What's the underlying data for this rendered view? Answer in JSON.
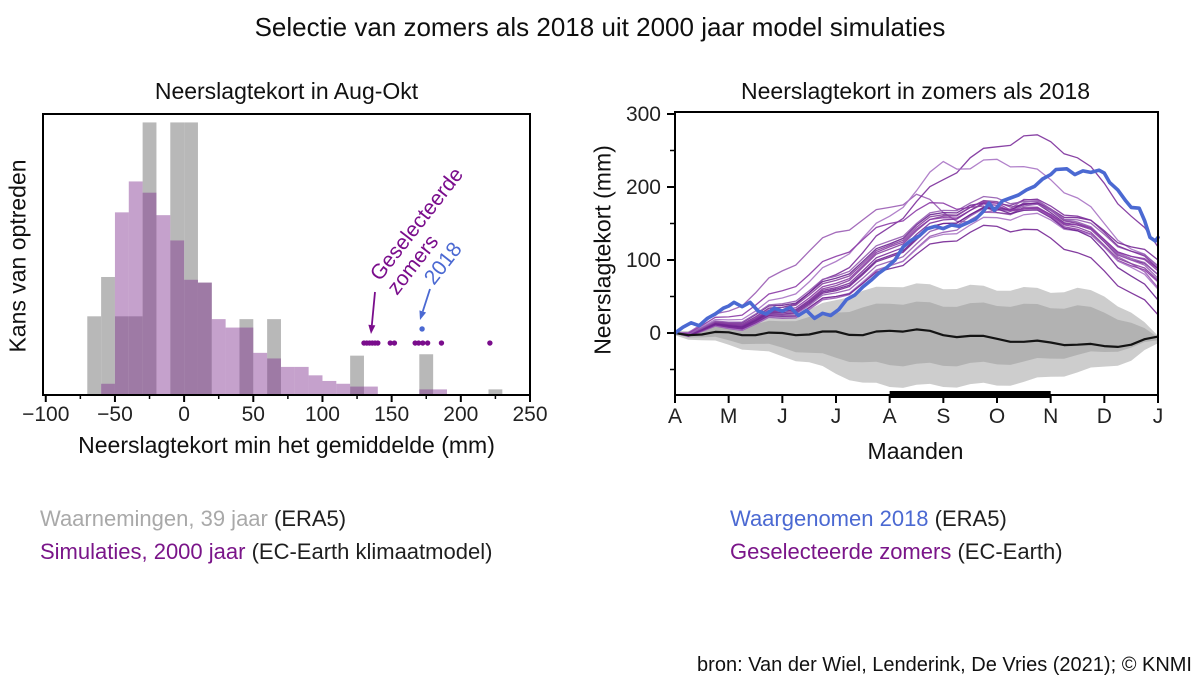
{
  "title": "Selectie van zomers als 2018 uit 2000 jaar model simulaties",
  "source": "bron: Van der Wiel, Lenderink, De Vries (2021); © KNMI",
  "colors": {
    "obs_gray": "#b8b8b8",
    "sim_purple": "rgba(127,47,142,0.45)",
    "dot_purple": "#7a0d8c",
    "blue": "#4b69d2",
    "band_outer": "#cdcdcd",
    "band_inner": "#b2b2b2",
    "black_line": "#141414",
    "axis": "#000000",
    "tick_text": "#222222",
    "purple_palette": [
      "#9a5cb4",
      "#7c2f9b",
      "#a873c4",
      "#86429f",
      "#6d2391",
      "#945bb0",
      "#8b3aa6",
      "#752795"
    ],
    "legend_gray": "#a9a9a9",
    "legend_purple": "#7a1589",
    "legend_blue": "#4b69d2"
  },
  "legend_left": [
    {
      "label": "Waarnemingen, 39 jaar",
      "suffix": " (ERA5)"
    },
    {
      "label": "Simulaties, 2000 jaar",
      "suffix": " (EC-Earth klimaatmodel)"
    }
  ],
  "legend_right": [
    {
      "label": "Waargenomen 2018",
      "suffix": " (ERA5)"
    },
    {
      "label": "Geselecteerde zomers",
      "suffix": " (EC-Earth)"
    }
  ],
  "chart_data": [
    {
      "type": "bar",
      "subtype": "overlaid-histograms-with-dot-rug",
      "title": "Neerslagtekort in Aug-Okt",
      "xlabel": "Neerslagtekort min het gemiddelde (mm)",
      "ylabel": "Kans van optreden",
      "xlim": [
        -102,
        250
      ],
      "x_ticks": [
        -100,
        -50,
        0,
        50,
        100,
        150,
        200,
        250
      ],
      "x_minor_ticks": [
        -75,
        -25,
        25,
        75,
        125,
        175,
        225
      ],
      "bin_width": 10,
      "obs_bins": [
        [
          -70,
          0.28
        ],
        [
          -60,
          0.42
        ],
        [
          -50,
          0.28
        ],
        [
          -40,
          0.28
        ],
        [
          -30,
          0.97
        ],
        [
          -10,
          0.97
        ],
        [
          0,
          0.97
        ],
        [
          10,
          0.4
        ],
        [
          40,
          0.27
        ],
        [
          60,
          0.27
        ],
        [
          120,
          0.14
        ],
        [
          170,
          0.145
        ],
        [
          220,
          0.02
        ]
      ],
      "sim_bins": [
        [
          -60,
          0.04
        ],
        [
          -50,
          0.65
        ],
        [
          -40,
          0.76
        ],
        [
          -30,
          0.72
        ],
        [
          -20,
          0.64
        ],
        [
          -10,
          0.55
        ],
        [
          0,
          0.41
        ],
        [
          10,
          0.4
        ],
        [
          20,
          0.27
        ],
        [
          30,
          0.24
        ],
        [
          40,
          0.24
        ],
        [
          50,
          0.15
        ],
        [
          60,
          0.13
        ],
        [
          70,
          0.1
        ],
        [
          80,
          0.1
        ],
        [
          90,
          0.07
        ],
        [
          100,
          0.05
        ],
        [
          110,
          0.04
        ],
        [
          120,
          0.03
        ],
        [
          130,
          0.03
        ],
        [
          170,
          0.02
        ],
        [
          180,
          0.02
        ]
      ],
      "selected_summer_dots_x": [
        130,
        132,
        134,
        136,
        138,
        140,
        149,
        152,
        167,
        169.5,
        172.5,
        176,
        186,
        221
      ],
      "dots_y_frac": 0.185,
      "dot_2018": {
        "x": 172,
        "y_frac": 0.235
      },
      "annotations": {
        "selected_lines": [
          "Geselecteerde",
          "zomers"
        ],
        "year_label": "2018"
      }
    },
    {
      "type": "line",
      "title": "Neerslagtekort in zomers als 2018",
      "xlabel": "Maanden",
      "ylabel": "Neerslagtekort (mm)",
      "months": [
        "A",
        "M",
        "J",
        "J",
        "A",
        "S",
        "O",
        "N",
        "D",
        "J"
      ],
      "ylim": [
        -85,
        305
      ],
      "y_ticks": [
        0,
        100,
        200,
        300
      ],
      "y_minor_ticks": [
        -50,
        50,
        150,
        250
      ],
      "selection_period": {
        "start_month_index": 4,
        "end_month_index": 7
      },
      "x_step_months": 0.5,
      "band_outer": {
        "upper": [
          3,
          8,
          12,
          18,
          24,
          32,
          45,
          58,
          63,
          68,
          60,
          66,
          58,
          63,
          55,
          62,
          50,
          28,
          -4
        ],
        "lower": [
          -3,
          -10,
          -16,
          -24,
          -32,
          -40,
          -56,
          -68,
          -74,
          -71,
          -74,
          -70,
          -72,
          -67,
          -60,
          -54,
          -46,
          -38,
          -14
        ]
      },
      "band_inner": {
        "upper": [
          1,
          5,
          8,
          12,
          16,
          22,
          28,
          35,
          40,
          43,
          36,
          41,
          37,
          40,
          34,
          38,
          28,
          14,
          -6
        ],
        "lower": [
          -1,
          -6,
          -10,
          -15,
          -20,
          -27,
          -34,
          -40,
          -44,
          -42,
          -45,
          -41,
          -43,
          -39,
          -35,
          -30,
          -26,
          -20,
          -10
        ]
      },
      "black_line": [
        0,
        -2,
        1,
        -3,
        0,
        -2,
        2,
        -3,
        3,
        5,
        -3,
        -4,
        -8,
        -12,
        -13,
        -16,
        -18,
        -16,
        -5
      ],
      "blue_line": [
        [
          0,
          0
        ],
        [
          0.15,
          8
        ],
        [
          0.3,
          14
        ],
        [
          0.45,
          10
        ],
        [
          0.6,
          20
        ],
        [
          0.75,
          26
        ],
        [
          0.9,
          34
        ],
        [
          1.0,
          37
        ],
        [
          1.1,
          42
        ],
        [
          1.25,
          36
        ],
        [
          1.4,
          42
        ],
        [
          1.55,
          30
        ],
        [
          1.7,
          26
        ],
        [
          1.85,
          34
        ],
        [
          2.0,
          30
        ],
        [
          2.15,
          35
        ],
        [
          2.3,
          24
        ],
        [
          2.45,
          31
        ],
        [
          2.6,
          20
        ],
        [
          2.75,
          27
        ],
        [
          2.9,
          24
        ],
        [
          3.05,
          32
        ],
        [
          3.2,
          46
        ],
        [
          3.35,
          52
        ],
        [
          3.5,
          63
        ],
        [
          3.65,
          72
        ],
        [
          3.8,
          82
        ],
        [
          3.95,
          90
        ],
        [
          4.1,
          100
        ],
        [
          4.25,
          118
        ],
        [
          4.4,
          127
        ],
        [
          4.55,
          133
        ],
        [
          4.7,
          143
        ],
        [
          4.85,
          146
        ],
        [
          5.0,
          143
        ],
        [
          5.15,
          148
        ],
        [
          5.3,
          146
        ],
        [
          5.45,
          151
        ],
        [
          5.6,
          156
        ],
        [
          5.75,
          167
        ],
        [
          5.85,
          178
        ],
        [
          5.95,
          168
        ],
        [
          6.1,
          181
        ],
        [
          6.25,
          185
        ],
        [
          6.4,
          189
        ],
        [
          6.55,
          196
        ],
        [
          6.7,
          201
        ],
        [
          6.85,
          211
        ],
        [
          7.0,
          217
        ],
        [
          7.1,
          224
        ],
        [
          7.3,
          225
        ],
        [
          7.45,
          217
        ],
        [
          7.6,
          222
        ],
        [
          7.75,
          220
        ],
        [
          7.9,
          223
        ],
        [
          8.0,
          219
        ],
        [
          8.1,
          206
        ],
        [
          8.25,
          196
        ],
        [
          8.4,
          181
        ],
        [
          8.5,
          172
        ],
        [
          8.65,
          171
        ],
        [
          8.75,
          154
        ],
        [
          8.85,
          131
        ],
        [
          8.95,
          126
        ],
        [
          9,
          131
        ]
      ],
      "purple_lines": [
        [
          0,
          12,
          30,
          55,
          85,
          112,
          138,
          155,
          172,
          190,
          165,
          152,
          168,
          183,
          170,
          150,
          125,
          95,
          62
        ],
        [
          0,
          5,
          12,
          22,
          35,
          55,
          80,
          110,
          145,
          180,
          210,
          240,
          255,
          270,
          262,
          240,
          205,
          160,
          118
        ],
        [
          0,
          8,
          18,
          30,
          48,
          70,
          98,
          130,
          160,
          195,
          235,
          225,
          238,
          228,
          210,
          185,
          150,
          115,
          90
        ],
        [
          0,
          4,
          10,
          18,
          30,
          45,
          65,
          90,
          115,
          140,
          160,
          172,
          180,
          176,
          168,
          150,
          128,
          105,
          88
        ],
        [
          0,
          6,
          14,
          25,
          38,
          55,
          75,
          98,
          122,
          148,
          165,
          175,
          170,
          178,
          165,
          148,
          125,
          100,
          80
        ],
        [
          0,
          3,
          8,
          15,
          25,
          38,
          55,
          75,
          98,
          122,
          145,
          160,
          170,
          174,
          168,
          155,
          135,
          112,
          92
        ],
        [
          0,
          5,
          12,
          20,
          32,
          48,
          68,
          92,
          118,
          142,
          158,
          168,
          175,
          170,
          160,
          142,
          118,
          92,
          70
        ],
        [
          0,
          4,
          9,
          16,
          26,
          40,
          58,
          80,
          104,
          128,
          150,
          162,
          172,
          176,
          170,
          158,
          140,
          118,
          100
        ],
        [
          0,
          2,
          6,
          12,
          20,
          32,
          48,
          68,
          92,
          116,
          138,
          155,
          165,
          170,
          162,
          148,
          126,
          100,
          75
        ],
        [
          0,
          5,
          11,
          19,
          30,
          44,
          62,
          85,
          110,
          135,
          155,
          168,
          178,
          182,
          174,
          160,
          138,
          112,
          88
        ],
        [
          0,
          3,
          7,
          13,
          22,
          34,
          50,
          70,
          92,
          115,
          135,
          148,
          158,
          162,
          155,
          140,
          118,
          90,
          60
        ],
        [
          0,
          6,
          13,
          22,
          35,
          52,
          72,
          95,
          120,
          145,
          162,
          172,
          165,
          172,
          162,
          145,
          120,
          95,
          72
        ],
        [
          0,
          4,
          10,
          17,
          28,
          42,
          60,
          82,
          106,
          130,
          150,
          162,
          170,
          168,
          158,
          140,
          112,
          78,
          45
        ],
        [
          0,
          7,
          15,
          26,
          40,
          58,
          78,
          102,
          126,
          150,
          168,
          178,
          185,
          180,
          170,
          152,
          128,
          102,
          80
        ],
        [
          0,
          10,
          22,
          38,
          58,
          80,
          105,
          128,
          150,
          168,
          178,
          172,
          178,
          170,
          162,
          148,
          128,
          105,
          85
        ],
        [
          0,
          3,
          8,
          14,
          23,
          35,
          50,
          68,
          88,
          108,
          125,
          138,
          146,
          142,
          130,
          110,
          85,
          55,
          25
        ]
      ]
    }
  ]
}
